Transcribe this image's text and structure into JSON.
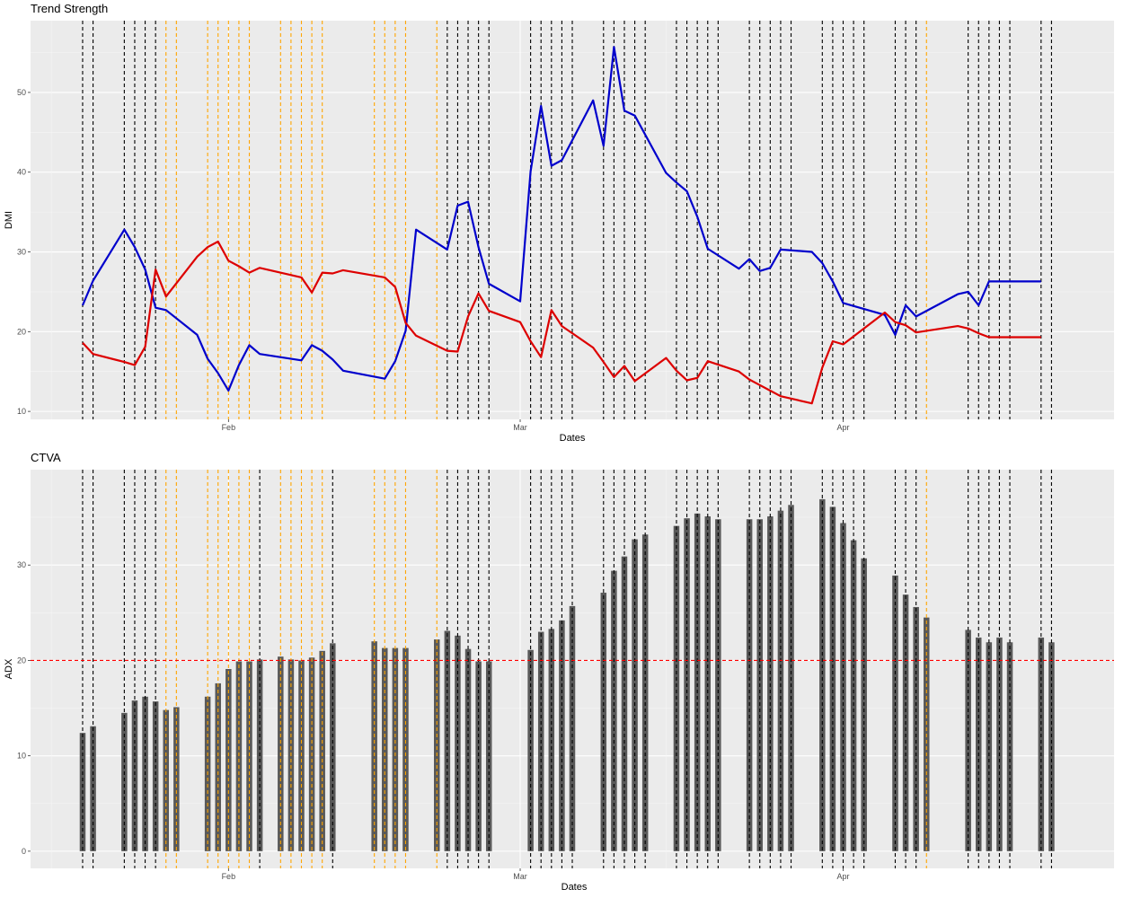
{
  "chart_data": [
    {
      "type": "line",
      "title": "Trend Strength",
      "xlabel": "Dates",
      "ylabel": "DMI",
      "xlim": [
        "2021-01-13",
        "2021-04-27"
      ],
      "ylim": [
        9,
        59
      ],
      "x_ticks": [
        {
          "date": "2021-02-01",
          "label": "Feb"
        },
        {
          "date": "2021-03-01",
          "label": "Mar"
        },
        {
          "date": "2021-04-01",
          "label": "Apr"
        }
      ],
      "y_ticks": [
        10,
        20,
        30,
        40,
        50
      ],
      "grid": true,
      "colors": {
        "series_0": "#0000cc",
        "series_1": "#dd0000",
        "black_marker": "#000000",
        "orange_marker": "#ffa500"
      },
      "x": [
        "2021-01-18",
        "2021-01-19",
        "2021-01-22",
        "2021-01-23",
        "2021-01-24",
        "2021-01-25",
        "2021-01-26",
        "2021-01-29",
        "2021-01-30",
        "2021-01-31",
        "2021-02-01",
        "2021-02-02",
        "2021-02-03",
        "2021-02-04",
        "2021-02-08",
        "2021-02-09",
        "2021-02-10",
        "2021-02-11",
        "2021-02-12",
        "2021-02-16",
        "2021-02-17",
        "2021-02-18",
        "2021-02-19",
        "2021-02-22",
        "2021-02-23",
        "2021-02-24",
        "2021-02-25",
        "2021-02-26",
        "2021-03-01",
        "2021-03-02",
        "2021-03-03",
        "2021-03-04",
        "2021-03-05",
        "2021-03-08",
        "2021-03-09",
        "2021-03-10",
        "2021-03-11",
        "2021-03-12",
        "2021-03-15",
        "2021-03-16",
        "2021-03-17",
        "2021-03-18",
        "2021-03-19",
        "2021-03-22",
        "2021-03-23",
        "2021-03-24",
        "2021-03-25",
        "2021-03-26",
        "2021-03-29",
        "2021-03-30",
        "2021-03-31",
        "2021-04-01",
        "2021-04-05",
        "2021-04-06",
        "2021-04-07",
        "2021-04-08",
        "2021-04-12",
        "2021-04-13",
        "2021-04-14",
        "2021-04-15",
        "2021-04-16",
        "2021-04-19",
        "2021-04-20"
      ],
      "series": [
        {
          "values": [
            23.3,
            26.4,
            32.8,
            30.6,
            27.8,
            23.0,
            22.7,
            19.6,
            16.6,
            14.8,
            12.6,
            15.8,
            18.3,
            17.2,
            16.4,
            18.3,
            17.6,
            16.5,
            15.1,
            14.1,
            16.3,
            20.1,
            32.8,
            30.3,
            35.8,
            36.3,
            30.6,
            26.0,
            23.8,
            40.1,
            48.3,
            40.8,
            41.5,
            49.0,
            43.3,
            55.7,
            47.7,
            47.1,
            39.9,
            38.7,
            37.6,
            34.4,
            30.4,
            27.9,
            29.1,
            27.6,
            28.0,
            30.3,
            30.0,
            28.6,
            26.3,
            23.6,
            22.1,
            19.6,
            23.3,
            21.9,
            24.7,
            25.0,
            23.3,
            26.3,
            26.3,
            26.3,
            26.3
          ]
        },
        {
          "values": [
            18.6,
            17.2,
            16.2,
            15.8,
            18.1,
            27.8,
            24.4,
            29.4,
            30.6,
            31.3,
            28.9,
            28.2,
            27.4,
            28.0,
            26.8,
            24.9,
            27.4,
            27.3,
            27.7,
            26.8,
            25.6,
            21.1,
            19.5,
            17.6,
            17.5,
            21.9,
            24.8,
            22.6,
            21.2,
            18.8,
            16.8,
            22.7,
            20.7,
            18.0,
            16.2,
            14.3,
            15.7,
            13.8,
            16.7,
            15.1,
            13.9,
            14.2,
            16.3,
            15.0,
            14.0,
            13.3,
            12.6,
            11.9,
            11.0,
            15.5,
            18.8,
            18.4,
            22.4,
            21.2,
            20.8,
            19.9,
            20.7,
            20.4,
            19.8,
            19.3,
            19.3,
            19.3,
            19.3
          ]
        }
      ],
      "markers_black": [
        "2021-01-18",
        "2021-01-19",
        "2021-01-22",
        "2021-01-23",
        "2021-01-24",
        "2021-01-25",
        "2021-02-22",
        "2021-02-23",
        "2021-02-24",
        "2021-02-25",
        "2021-02-26",
        "2021-03-02",
        "2021-03-03",
        "2021-03-04",
        "2021-03-05",
        "2021-03-06",
        "2021-03-09",
        "2021-03-10",
        "2021-03-11",
        "2021-03-12",
        "2021-03-13",
        "2021-03-16",
        "2021-03-17",
        "2021-03-18",
        "2021-03-19",
        "2021-03-20",
        "2021-03-23",
        "2021-03-24",
        "2021-03-25",
        "2021-03-26",
        "2021-03-27",
        "2021-03-30",
        "2021-03-31",
        "2021-04-01",
        "2021-04-02",
        "2021-04-03",
        "2021-04-06",
        "2021-04-07",
        "2021-04-08",
        "2021-04-13",
        "2021-04-14",
        "2021-04-15",
        "2021-04-16",
        "2021-04-17",
        "2021-04-20",
        "2021-04-21"
      ],
      "markers_orange": [
        "2021-01-26",
        "2021-01-27",
        "2021-01-30",
        "2021-01-31",
        "2021-02-01",
        "2021-02-02",
        "2021-02-03",
        "2021-02-06",
        "2021-02-07",
        "2021-02-08",
        "2021-02-09",
        "2021-02-10",
        "2021-02-15",
        "2021-02-16",
        "2021-02-17",
        "2021-02-18",
        "2021-02-21",
        "2021-04-09"
      ]
    },
    {
      "type": "bar",
      "title": "CTVA",
      "xlabel": "Dates",
      "ylabel": "ADX",
      "xlim": [
        "2021-01-13",
        "2021-04-27"
      ],
      "ylim": [
        -1.8,
        40
      ],
      "x_ticks": [
        {
          "date": "2021-02-01",
          "label": "Feb"
        },
        {
          "date": "2021-03-01",
          "label": "Mar"
        },
        {
          "date": "2021-04-01",
          "label": "Apr"
        }
      ],
      "y_ticks": [
        0,
        10,
        20,
        30
      ],
      "grid": true,
      "threshold": 20,
      "colors": {
        "bar": "#595959",
        "threshold": "#ff0000",
        "black_marker": "#000000",
        "orange_marker": "#ffa500"
      },
      "x": [
        "2021-01-18",
        "2021-01-19",
        "2021-01-22",
        "2021-01-23",
        "2021-01-24",
        "2021-01-25",
        "2021-01-26",
        "2021-01-27",
        "2021-01-30",
        "2021-01-31",
        "2021-02-01",
        "2021-02-02",
        "2021-02-03",
        "2021-02-04",
        "2021-02-06",
        "2021-02-07",
        "2021-02-08",
        "2021-02-09",
        "2021-02-10",
        "2021-02-11",
        "2021-02-15",
        "2021-02-16",
        "2021-02-17",
        "2021-02-18",
        "2021-02-21",
        "2021-02-22",
        "2021-02-23",
        "2021-02-24",
        "2021-02-25",
        "2021-02-26",
        "2021-03-02",
        "2021-03-03",
        "2021-03-04",
        "2021-03-05",
        "2021-03-06",
        "2021-03-09",
        "2021-03-10",
        "2021-03-11",
        "2021-03-12",
        "2021-03-13",
        "2021-03-16",
        "2021-03-17",
        "2021-03-18",
        "2021-03-19",
        "2021-03-20",
        "2021-03-23",
        "2021-03-24",
        "2021-03-25",
        "2021-03-26",
        "2021-03-27",
        "2021-03-30",
        "2021-03-31",
        "2021-04-01",
        "2021-04-02",
        "2021-04-03",
        "2021-04-06",
        "2021-04-07",
        "2021-04-08",
        "2021-04-09",
        "2021-04-13",
        "2021-04-14",
        "2021-04-15",
        "2021-04-16",
        "2021-04-17",
        "2021-04-20",
        "2021-04-21"
      ],
      "values": [
        12.4,
        13.1,
        14.5,
        15.8,
        16.2,
        15.7,
        14.8,
        15.1,
        16.2,
        17.6,
        19.1,
        19.9,
        19.9,
        20.1,
        20.4,
        20.1,
        20.0,
        20.3,
        21.0,
        21.8,
        22.0,
        21.3,
        21.3,
        21.3,
        22.2,
        23.1,
        22.6,
        21.2,
        19.9,
        19.9,
        21.1,
        23.0,
        23.3,
        24.2,
        25.7,
        27.1,
        29.4,
        30.9,
        32.7,
        33.2,
        34.1,
        34.9,
        35.4,
        35.1,
        34.8,
        34.8,
        34.8,
        35.1,
        35.7,
        36.3,
        36.9,
        36.1,
        34.4,
        32.6,
        30.7,
        28.9,
        26.9,
        25.6,
        24.5,
        23.2,
        22.4,
        21.9,
        22.4,
        21.9,
        22.4,
        21.9
      ]
    }
  ]
}
